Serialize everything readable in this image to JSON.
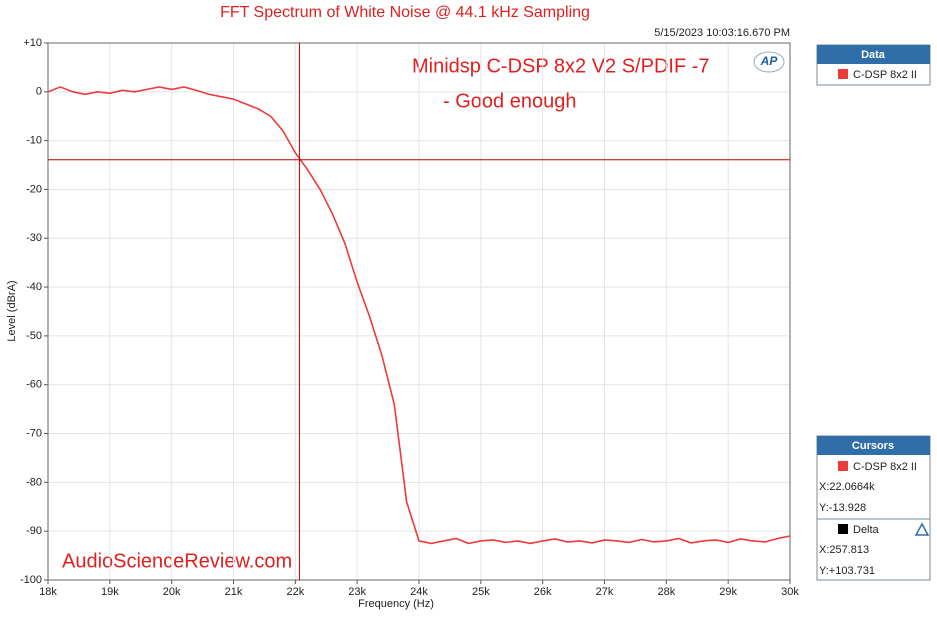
{
  "chart_data": {
    "type": "line",
    "title": "FFT Spectrum of White Noise @ 44.1 kHz Sampling",
    "timestamp": "5/15/2023 10:03:16.670 PM",
    "annotations": [
      "Minidsp C-DSP 8x2 V2 S/PDIF -7",
      "- Good enough"
    ],
    "watermark": "AudioScienceReview.com",
    "logo": "AP",
    "x_label": "Frequency (Hz)",
    "y_label": "Level (dBrA)",
    "x": [
      18000,
      18200,
      18400,
      18600,
      18800,
      19000,
      19200,
      19400,
      19600,
      19800,
      20000,
      20200,
      20400,
      20600,
      20800,
      21000,
      21200,
      21400,
      21600,
      21800,
      22000,
      22200,
      22400,
      22600,
      22800,
      23000,
      23200,
      23400,
      23600,
      23800,
      24000,
      24200,
      24400,
      24600,
      24800,
      25000,
      25200,
      25400,
      25600,
      25800,
      26000,
      26200,
      26400,
      26600,
      26800,
      27000,
      27200,
      27400,
      27600,
      27800,
      28000,
      28200,
      28400,
      28600,
      28800,
      29000,
      29200,
      29400,
      29600,
      29800,
      30000
    ],
    "series": [
      {
        "name": "C-DSP 8x2 II",
        "color": "#ee3a3a",
        "values": [
          0,
          1,
          0,
          -0.5,
          0,
          -0.3,
          0.3,
          0,
          0.5,
          1,
          0.5,
          1,
          0.3,
          -0.5,
          -1,
          -1.5,
          -2.5,
          -3.5,
          -5,
          -8,
          -12.5,
          -16,
          -20,
          -25,
          -31,
          -39,
          -46,
          -54,
          -64,
          -84,
          -92,
          -92.5,
          -92,
          -91.5,
          -92.5,
          -92,
          -91.8,
          -92.3,
          -92,
          -92.5,
          -92,
          -91.6,
          -92.2,
          -92,
          -92.4,
          -91.8,
          -92,
          -92.3,
          -91.7,
          -92.2,
          -92,
          -91.5,
          -92.4,
          -92,
          -91.8,
          -92.3,
          -91.6,
          -92,
          -92.2,
          -91.5,
          -91
        ]
      }
    ],
    "xlim": [
      18000,
      30000
    ],
    "ylim": [
      -100,
      10
    ],
    "xticks": [
      {
        "value": 18000,
        "label": "18k"
      },
      {
        "value": 19000,
        "label": "19k"
      },
      {
        "value": 20000,
        "label": "20k"
      },
      {
        "value": 21000,
        "label": "21k"
      },
      {
        "value": 22000,
        "label": "22k"
      },
      {
        "value": 23000,
        "label": "23k"
      },
      {
        "value": 24000,
        "label": "24k"
      },
      {
        "value": 25000,
        "label": "25k"
      },
      {
        "value": 26000,
        "label": "26k"
      },
      {
        "value": 27000,
        "label": "27k"
      },
      {
        "value": 28000,
        "label": "28k"
      },
      {
        "value": 29000,
        "label": "29k"
      },
      {
        "value": 30000,
        "label": "30k"
      }
    ],
    "yticks": [
      {
        "value": 10,
        "label": "+10"
      },
      0,
      -10,
      -20,
      -30,
      -40,
      -50,
      -60,
      -70,
      -80,
      -90,
      -100
    ],
    "cursor": {
      "x": 22066.4,
      "y": -13.928,
      "x_label": "X:22.0664k",
      "y_label": "Y:-13.928",
      "color": "#c00000"
    },
    "panels": {
      "data_title": "Data",
      "cursors_title": "Cursors",
      "delta": {
        "name": "Delta",
        "x_label": "X:257.813",
        "y_label": "Y:+103.731"
      }
    }
  }
}
